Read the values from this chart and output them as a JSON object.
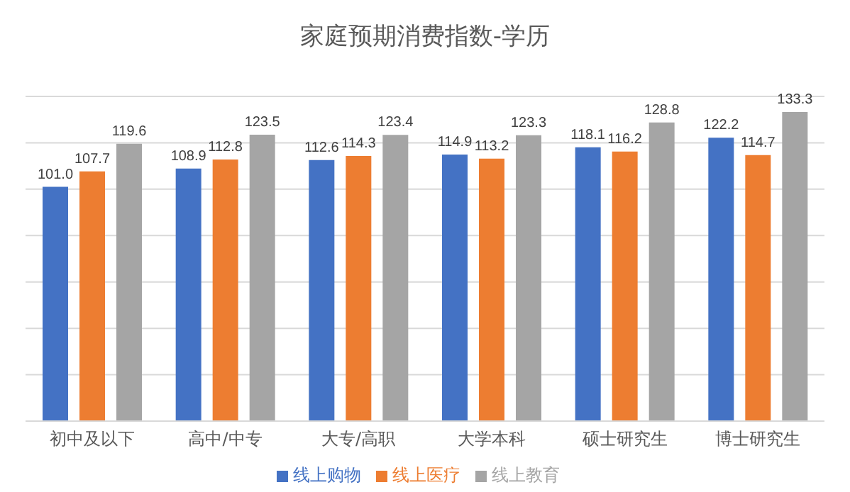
{
  "chart_data": {
    "type": "bar",
    "title": "家庭预期消费指数-学历",
    "categories": [
      "初中及以下",
      "高中/中专",
      "大专/高职",
      "大学本科",
      "硕士研究生",
      "博士研究生"
    ],
    "series": [
      {
        "name": "线上购物",
        "color": "#4472c4",
        "values": [
          101.0,
          108.9,
          112.6,
          114.9,
          118.1,
          122.2
        ],
        "value_labels": [
          "101.0",
          "108.9",
          "112.6",
          "114.9",
          "118.1",
          "122.2"
        ]
      },
      {
        "name": "线上医疗",
        "color": "#ed7d31",
        "values": [
          107.7,
          112.8,
          114.3,
          113.2,
          116.2,
          114.7
        ],
        "value_labels": [
          "107.7",
          "112.8",
          "114.3",
          "113.2",
          "116.2",
          "114.7"
        ]
      },
      {
        "name": "线上教育",
        "color": "#a5a5a5",
        "values": [
          119.6,
          123.5,
          123.4,
          123.3,
          128.8,
          133.3
        ],
        "value_labels": [
          "119.6",
          "123.5",
          "123.4",
          "123.3",
          "128.8",
          "133.3"
        ]
      }
    ],
    "grid": "y",
    "legend": "bottom",
    "tick_labels": "x"
  }
}
